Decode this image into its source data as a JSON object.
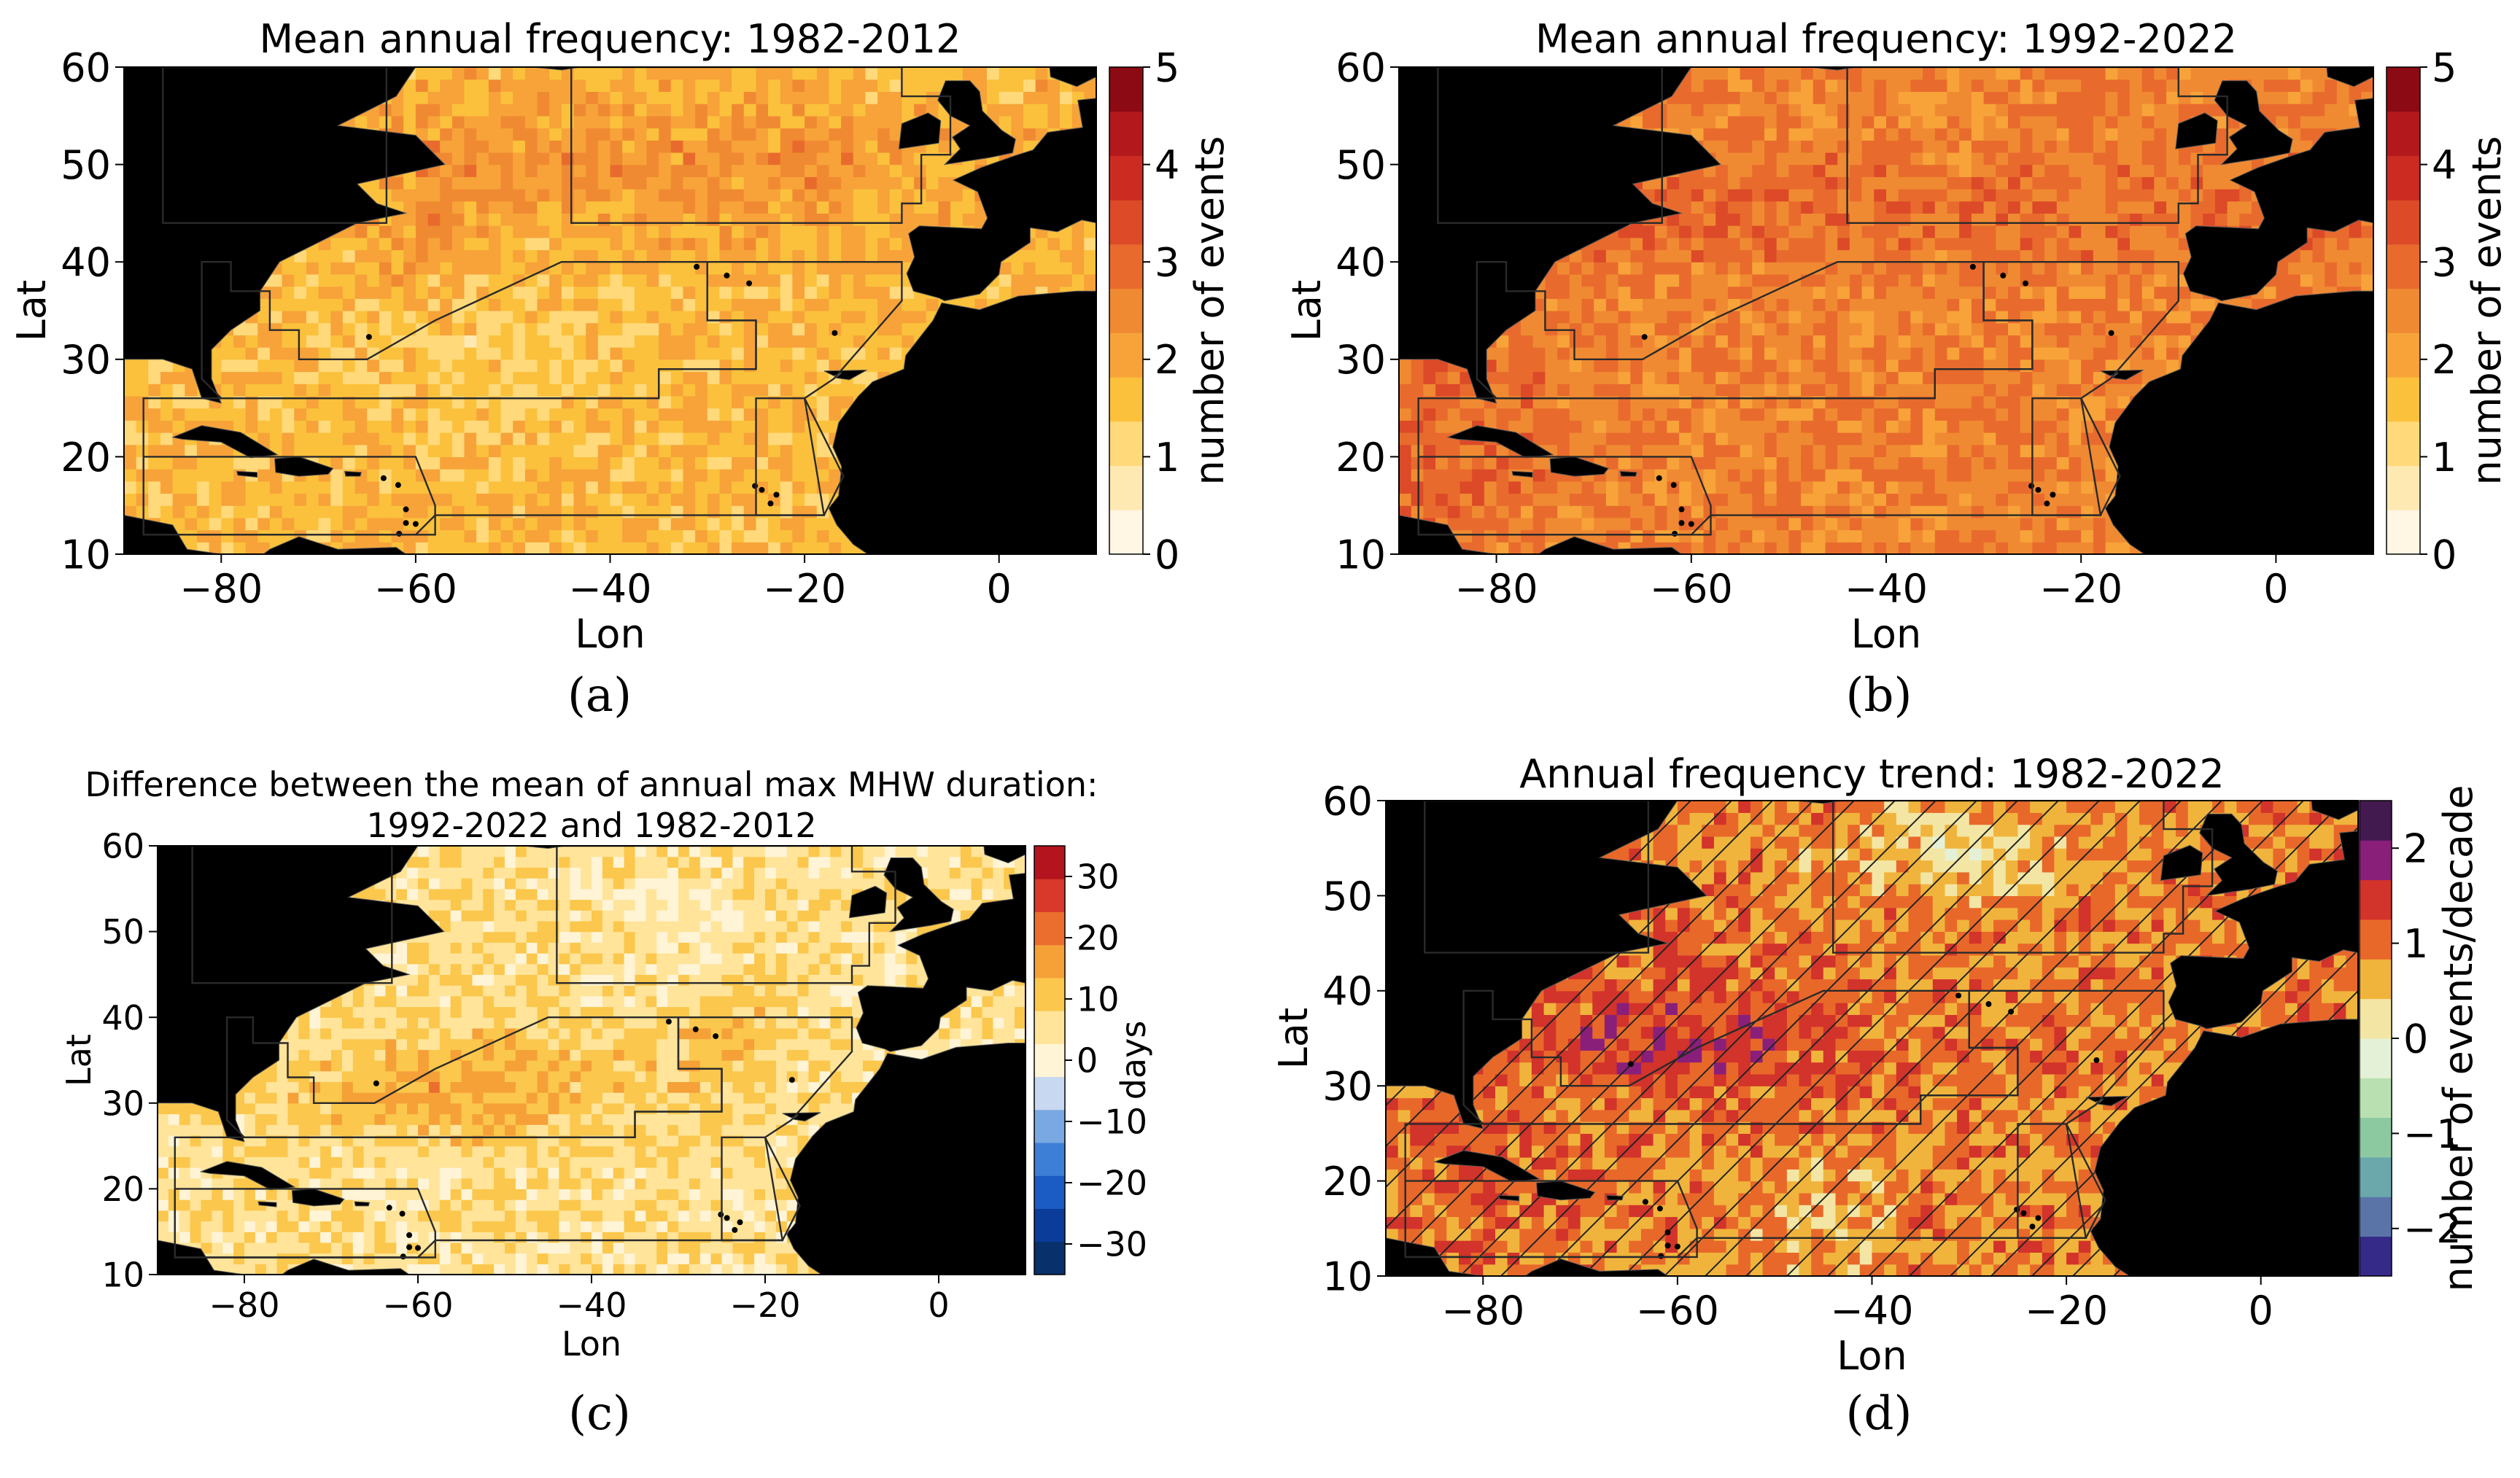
{
  "chart_data": [
    {
      "type": "heatmap",
      "panel_label": "(a)",
      "title": "Mean annual frequency: 1982-2012",
      "xlabel": "Lon",
      "ylabel": "Lat",
      "xlim": [
        -90,
        10
      ],
      "ylim": [
        10,
        60
      ],
      "xticks": [
        "−80",
        "−60",
        "−40",
        "−20",
        "0"
      ],
      "yticks": [
        "10",
        "20",
        "30",
        "40",
        "50",
        "60"
      ],
      "colorbar": {
        "label": "number of events",
        "range": [
          0,
          5
        ],
        "ticks": [
          "0",
          "1",
          "2",
          "3",
          "4",
          "5"
        ],
        "colors": [
          "#fff6e3",
          "#ffe9b3",
          "#ffd97a",
          "#fbc13c",
          "#f7a339",
          "#f08a32",
          "#e86b2d",
          "#dc4a28",
          "#cc2b22",
          "#b3181d",
          "#8c0a13"
        ]
      },
      "dominant_value": "1.5-2 events (orange-yellow); ~2.5 in subpolar North Atlantic and Gulf Stream"
    },
    {
      "type": "heatmap",
      "panel_label": "(b)",
      "title": "Mean annual frequency: 1992-2022",
      "xlabel": "Lon",
      "ylabel": "Lat",
      "xlim": [
        -90,
        10
      ],
      "ylim": [
        10,
        60
      ],
      "xticks": [
        "−80",
        "−60",
        "−40",
        "−20",
        "0"
      ],
      "yticks": [
        "10",
        "20",
        "30",
        "40",
        "50",
        "60"
      ],
      "colorbar": {
        "label": "number of events",
        "range": [
          0,
          5
        ],
        "ticks": [
          "0",
          "1",
          "2",
          "3",
          "4",
          "5"
        ],
        "colors": [
          "#fff6e3",
          "#ffe9b3",
          "#ffd97a",
          "#fbc13c",
          "#f7a339",
          "#f08a32",
          "#e86b2d",
          "#dc4a28",
          "#cc2b22",
          "#b3181d",
          "#8c0a13"
        ]
      },
      "dominant_value": "2.5-3 events (orange-red); ~3 in Caribbean and Gulf of Mexico"
    },
    {
      "type": "heatmap",
      "panel_label": "(c)",
      "title": "Difference between the mean of annual max MHW duration:",
      "subtitle": "1992-2022 and 1982-2012",
      "xlabel": "Lon",
      "ylabel": "Lat",
      "xlim": [
        -90,
        10
      ],
      "ylim": [
        10,
        60
      ],
      "xticks": [
        "−80",
        "−60",
        "−40",
        "−20",
        "0"
      ],
      "yticks": [
        "10",
        "20",
        "30",
        "40",
        "50",
        "60"
      ],
      "colorbar": {
        "label": "days",
        "range": [
          -35,
          35
        ],
        "ticks": [
          "30",
          "20",
          "10",
          "0",
          "−10",
          "−20",
          "−30"
        ],
        "colors": [
          "#08306b",
          "#0b3c9a",
          "#1a5bc4",
          "#3d7fd6",
          "#7aa8e2",
          "#c7d8f0",
          "#fff4d6",
          "#ffe49a",
          "#fbc74c",
          "#f5a138",
          "#ec6e2f",
          "#d8392a",
          "#b3141d"
        ]
      },
      "dominant_value": "0-10 days over most of basin; 10-20 days in subtropical gyre"
    },
    {
      "type": "heatmap",
      "panel_label": "(d)",
      "title": "Annual frequency trend: 1982-2022",
      "xlabel": "Lon",
      "ylabel": "Lat",
      "xlim": [
        -90,
        10
      ],
      "ylim": [
        10,
        60
      ],
      "xticks": [
        "−80",
        "−60",
        "−40",
        "−20",
        "0"
      ],
      "yticks": [
        "10",
        "20",
        "30",
        "40",
        "50",
        "60"
      ],
      "colorbar": {
        "label": "number of events/decade",
        "range": [
          -2.5,
          2.5
        ],
        "ticks": [
          "2",
          "1",
          "0",
          "−1",
          "−2"
        ],
        "colors": [
          "#352a87",
          "#5a74a8",
          "#6aa8ac",
          "#8cc9a0",
          "#b9e0b1",
          "#e4f1d6",
          "#f3e6a4",
          "#f0b43c",
          "#e8682a",
          "#d2332a",
          "#8a1f7a",
          "#421a4f"
        ]
      },
      "hatching": "diagonal hatching over significant trend areas",
      "dominant_value": "0.5-1.5 events/decade; ~0-0.5 in subpolar gyre"
    }
  ],
  "colors": {
    "land": "#000000",
    "region_outline": "#2a2a2a"
  }
}
